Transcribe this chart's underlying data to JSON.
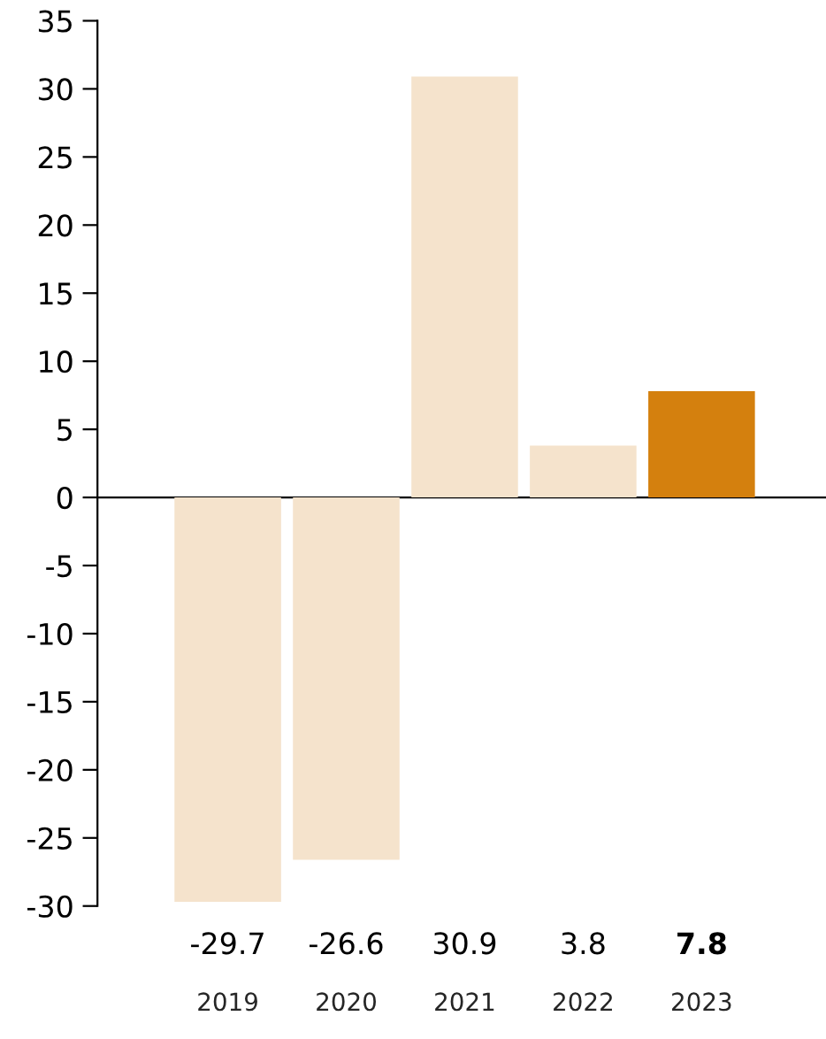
{
  "chart_data": {
    "type": "bar",
    "categories": [
      "2019",
      "2020",
      "2021",
      "2022",
      "2023"
    ],
    "values": [
      -29.7,
      -26.6,
      30.9,
      3.8,
      7.8
    ],
    "colors": [
      "#f5e3cc",
      "#f5e3cc",
      "#f5e3cc",
      "#f5e3cc",
      "#d4800e"
    ],
    "ylim": [
      -30,
      35
    ],
    "yticks": [
      -30,
      -25,
      -20,
      -15,
      -10,
      -5,
      0,
      5,
      10,
      15,
      20,
      25,
      30,
      35
    ],
    "data_labels": true
  }
}
